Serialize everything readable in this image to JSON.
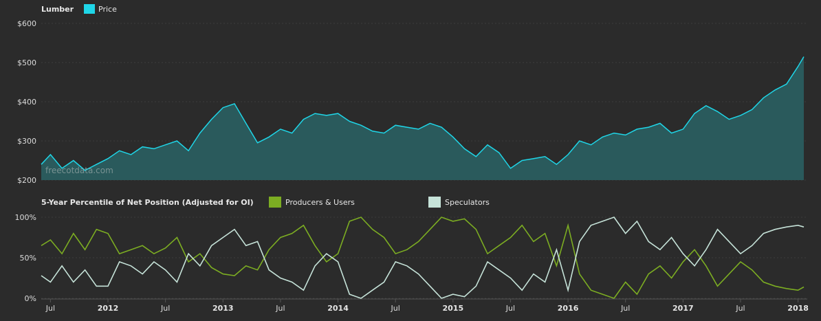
{
  "watermark": "freecotdata.com",
  "chart_data": [
    {
      "type": "area",
      "title": "Lumber",
      "legend": [
        {
          "name": "Price",
          "color": "#1fd6e8"
        }
      ],
      "color": "#1fd6e8",
      "fill": "#2a5a5c",
      "ylim": [
        200,
        600
      ],
      "yticks": [
        "$200",
        "$300",
        "$400",
        "$500",
        "$600"
      ],
      "ytick_values": [
        200,
        300,
        400,
        500,
        600
      ],
      "xlim": [
        2011.42,
        2018.08
      ],
      "x": [
        2011.42,
        2011.5,
        2011.6,
        2011.7,
        2011.8,
        2011.9,
        2012.0,
        2012.1,
        2012.2,
        2012.3,
        2012.4,
        2012.5,
        2012.6,
        2012.7,
        2012.8,
        2012.9,
        2013.0,
        2013.1,
        2013.2,
        2013.3,
        2013.4,
        2013.5,
        2013.6,
        2013.7,
        2013.8,
        2013.9,
        2014.0,
        2014.1,
        2014.2,
        2014.3,
        2014.4,
        2014.5,
        2014.6,
        2014.7,
        2014.8,
        2014.9,
        2015.0,
        2015.1,
        2015.2,
        2015.3,
        2015.4,
        2015.5,
        2015.6,
        2015.7,
        2015.8,
        2015.9,
        2016.0,
        2016.1,
        2016.2,
        2016.3,
        2016.4,
        2016.5,
        2016.6,
        2016.7,
        2016.8,
        2016.9,
        2017.0,
        2017.1,
        2017.2,
        2017.3,
        2017.4,
        2017.5,
        2017.6,
        2017.7,
        2017.8,
        2017.9,
        2018.0,
        2018.05
      ],
      "values": [
        240,
        265,
        230,
        250,
        225,
        240,
        255,
        275,
        265,
        285,
        280,
        290,
        300,
        275,
        320,
        355,
        385,
        395,
        345,
        295,
        310,
        330,
        320,
        355,
        370,
        365,
        370,
        350,
        340,
        325,
        320,
        340,
        335,
        330,
        345,
        335,
        310,
        280,
        260,
        290,
        270,
        230,
        250,
        255,
        260,
        240,
        265,
        300,
        290,
        310,
        320,
        315,
        330,
        335,
        345,
        320,
        330,
        370,
        390,
        375,
        355,
        365,
        380,
        410,
        430,
        445,
        490,
        515
      ]
    },
    {
      "type": "line",
      "title": "5-Year Percentile of Net Position (Adjusted for OI)",
      "ylim": [
        0,
        100
      ],
      "yticks": [
        "0%",
        "50%",
        "100%"
      ],
      "ytick_values": [
        0,
        50,
        100
      ],
      "xlim": [
        2011.42,
        2018.08
      ],
      "xticks": [
        "Jul",
        "2012",
        "Jul",
        "2013",
        "Jul",
        "2014",
        "Jul",
        "2015",
        "Jul",
        "2016",
        "Jul",
        "2017",
        "Jul",
        "2018"
      ],
      "xtick_values": [
        2011.5,
        2012.0,
        2012.5,
        2013.0,
        2013.5,
        2014.0,
        2014.5,
        2015.0,
        2015.5,
        2016.0,
        2016.5,
        2017.0,
        2017.5,
        2018.0
      ],
      "xtick_bold": [
        false,
        true,
        false,
        true,
        false,
        true,
        false,
        true,
        false,
        true,
        false,
        true,
        false,
        true
      ],
      "x": [
        2011.42,
        2011.5,
        2011.6,
        2011.7,
        2011.8,
        2011.9,
        2012.0,
        2012.1,
        2012.2,
        2012.3,
        2012.4,
        2012.5,
        2012.6,
        2012.7,
        2012.8,
        2012.9,
        2013.0,
        2013.1,
        2013.2,
        2013.3,
        2013.4,
        2013.5,
        2013.6,
        2013.7,
        2013.8,
        2013.9,
        2014.0,
        2014.1,
        2014.2,
        2014.3,
        2014.4,
        2014.5,
        2014.6,
        2014.7,
        2014.8,
        2014.9,
        2015.0,
        2015.1,
        2015.2,
        2015.3,
        2015.4,
        2015.5,
        2015.6,
        2015.7,
        2015.8,
        2015.9,
        2016.0,
        2016.1,
        2016.2,
        2016.3,
        2016.4,
        2016.5,
        2016.6,
        2016.7,
        2016.8,
        2016.9,
        2017.0,
        2017.1,
        2017.2,
        2017.3,
        2017.4,
        2017.5,
        2017.6,
        2017.7,
        2017.8,
        2017.9,
        2018.0,
        2018.05
      ],
      "series": [
        {
          "name": "Producers & Users",
          "color": "#7cad22",
          "values": [
            65,
            72,
            55,
            80,
            60,
            85,
            80,
            55,
            60,
            65,
            55,
            62,
            75,
            45,
            55,
            38,
            30,
            28,
            40,
            35,
            60,
            75,
            80,
            90,
            65,
            45,
            55,
            95,
            100,
            85,
            75,
            55,
            60,
            70,
            85,
            100,
            95,
            98,
            85,
            55,
            65,
            75,
            90,
            70,
            80,
            40,
            90,
            30,
            10,
            5,
            0,
            20,
            5,
            30,
            40,
            25,
            45,
            60,
            40,
            15,
            30,
            45,
            35,
            20,
            15,
            12,
            10,
            14
          ]
        },
        {
          "name": "Speculators",
          "color": "#c6e3d9",
          "values": [
            28,
            20,
            40,
            20,
            35,
            15,
            15,
            45,
            40,
            30,
            45,
            35,
            20,
            55,
            40,
            65,
            75,
            85,
            65,
            70,
            35,
            25,
            20,
            10,
            40,
            55,
            45,
            5,
            0,
            10,
            20,
            45,
            40,
            30,
            15,
            0,
            5,
            2,
            15,
            45,
            35,
            25,
            10,
            30,
            20,
            60,
            10,
            70,
            90,
            95,
            100,
            80,
            95,
            70,
            60,
            75,
            55,
            40,
            60,
            85,
            70,
            55,
            65,
            80,
            85,
            88,
            90,
            88
          ]
        }
      ]
    }
  ]
}
